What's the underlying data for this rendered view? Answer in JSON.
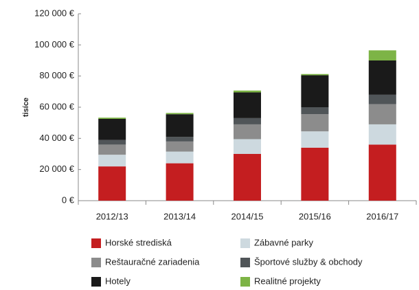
{
  "chart_data": {
    "type": "stacked_bar",
    "y_label": "tisíce",
    "categories": [
      "2012/13",
      "2013/14",
      "2014/15",
      "2015/16",
      "2016/17"
    ],
    "series": [
      {
        "name": "Horské strediská",
        "color": "#c41e20",
        "values": [
          22000,
          24000,
          30000,
          34000,
          36000
        ]
      },
      {
        "name": "Zábavné parky",
        "color": "#cdd9df",
        "values": [
          7500,
          7500,
          9500,
          10500,
          13000
        ]
      },
      {
        "name": "Reštauračné zariadenia",
        "color": "#8c8c8c",
        "values": [
          6500,
          6500,
          9500,
          11000,
          13000
        ]
      },
      {
        "name": "Športové služby & obchody",
        "color": "#505558",
        "values": [
          3000,
          3000,
          4000,
          4500,
          6000
        ]
      },
      {
        "name": "Hotely",
        "color": "#1a1a1a",
        "values": [
          13500,
          14500,
          16500,
          20500,
          22000
        ]
      },
      {
        "name": "Realitné projekty",
        "color": "#7db446",
        "values": [
          800,
          800,
          1200,
          800,
          6500
        ]
      }
    ],
    "ylim": [
      0,
      120000
    ],
    "yticks": [
      {
        "value": 0,
        "label": "0 €"
      },
      {
        "value": 20000,
        "label": "20 000 €"
      },
      {
        "value": 40000,
        "label": "40 000 €"
      },
      {
        "value": 60000,
        "label": "60 000 €"
      },
      {
        "value": 80000,
        "label": "80 000 €"
      },
      {
        "value": 100000,
        "label": "100 000 €"
      },
      {
        "value": 120000,
        "label": "120 000 €"
      }
    ],
    "grid": false
  }
}
